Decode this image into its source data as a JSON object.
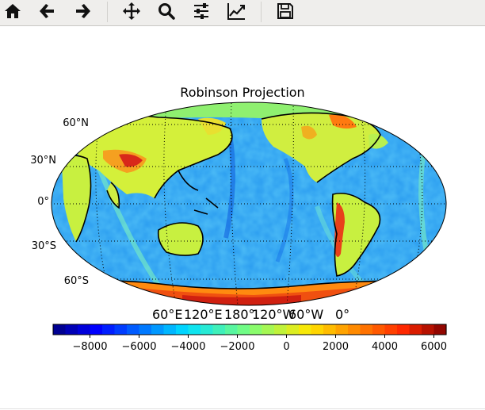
{
  "toolbar": {
    "buttons": [
      {
        "icon": "home-icon"
      },
      {
        "icon": "back-arrow-icon"
      },
      {
        "icon": "forward-arrow-icon"
      },
      {
        "icon": "pan-move-icon"
      },
      {
        "icon": "zoom-magnifier-icon"
      },
      {
        "icon": "configure-subplots-icon"
      },
      {
        "icon": "edit-axis-curve-icon"
      },
      {
        "icon": "save-floppy-icon"
      }
    ]
  },
  "figure": {
    "title": "Robinson Projection",
    "lat_labels": [
      "60°N",
      "30°N",
      "0°",
      "30°S",
      "60°S"
    ],
    "lon_labels": [
      "60°E",
      "120°E",
      "180°",
      "120°W",
      "60°W",
      "0°"
    ]
  },
  "chart_data": {
    "type": "heatmap",
    "title": "Robinson Projection",
    "projection": "Robinson",
    "central_longitude": 180,
    "colormap": "jet",
    "colorbar": {
      "orientation": "horizontal",
      "ticks": [
        -8000,
        -6000,
        -4000,
        -2000,
        0,
        2000,
        4000,
        6000
      ],
      "tick_labels": [
        "−8000",
        "−6000",
        "−4000",
        "−2000",
        "0",
        "2000",
        "4000",
        "6000"
      ],
      "range": [
        -9500,
        6500
      ]
    },
    "gridlines": {
      "latitudes": [
        -60,
        -30,
        0,
        30,
        60
      ],
      "longitudes": [
        60,
        120,
        180,
        -120,
        -60,
        0
      ],
      "style": "dotted"
    },
    "coastlines": true
  }
}
